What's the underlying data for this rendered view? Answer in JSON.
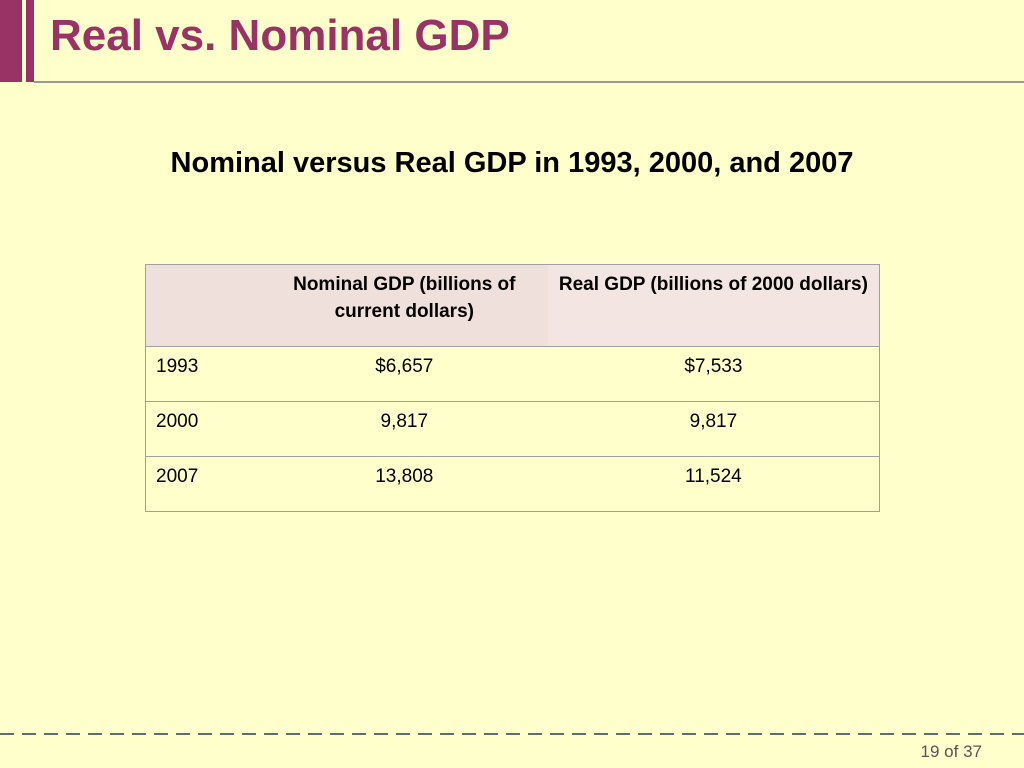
{
  "slide": {
    "title": "Real vs. Nominal GDP",
    "accent_color": "#993366",
    "background_color": "#ffffcc"
  },
  "table_heading": "Nominal versus Real GDP in 1993, 2000, and 2007",
  "table": {
    "columns": [
      "",
      "Nominal GDP (billions of current dollars)",
      "Real GDP (billions of 2000 dollars)"
    ],
    "rows": [
      {
        "year": "1993",
        "nominal": "$6,657",
        "real": "$7,533"
      },
      {
        "year": "2000",
        "nominal": "9,817",
        "real": "9,817"
      },
      {
        "year": "2007",
        "nominal": "13,808",
        "real": "11,524"
      }
    ]
  },
  "footer": {
    "page_number": "19 of 37"
  }
}
